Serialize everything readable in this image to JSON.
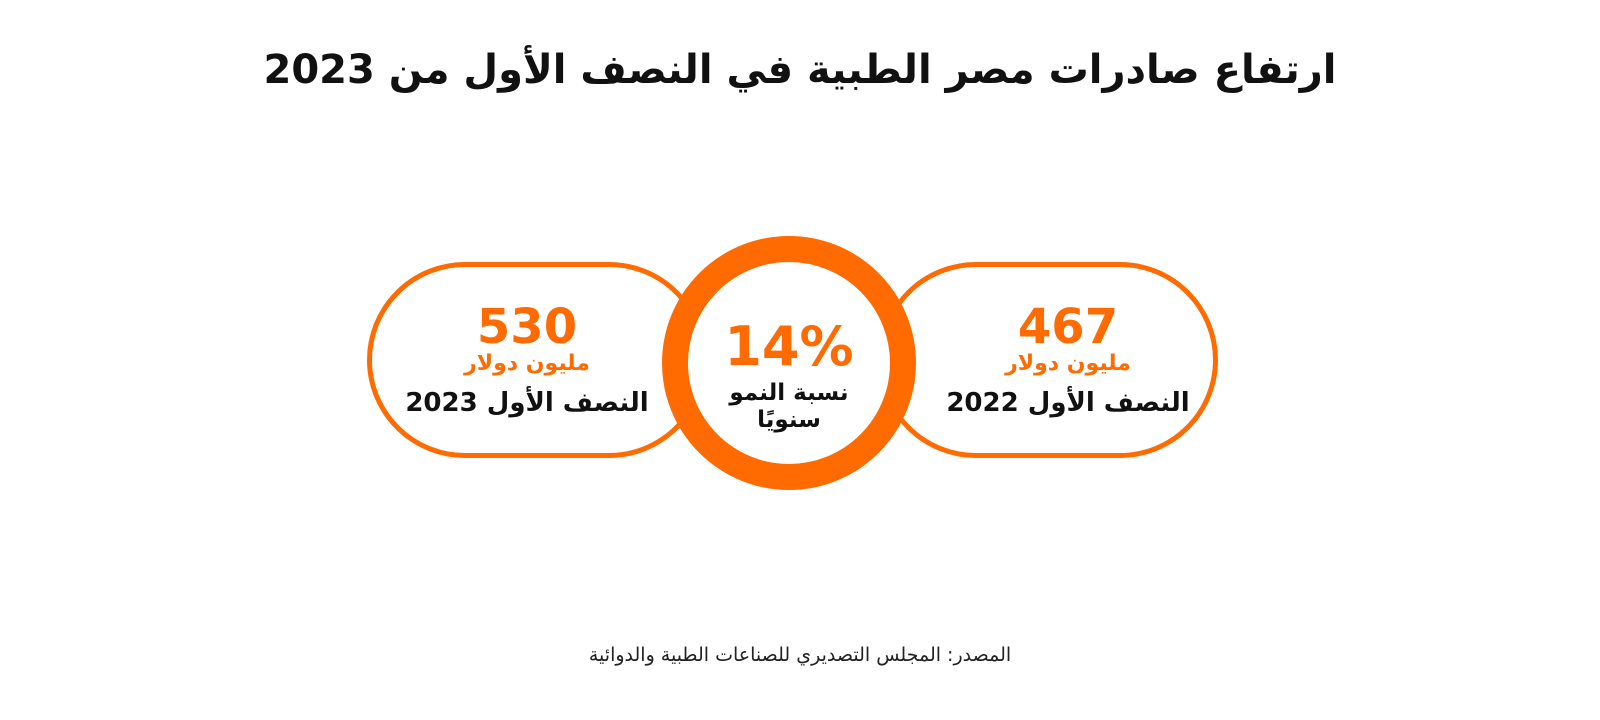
{
  "title": "ارتفاع صادرات مصر الطبية في النصف الأول من 2023",
  "left_card": {
    "value": "530",
    "unit": "مليون دولار",
    "period": "النصف الأول 2023"
  },
  "center": {
    "percent": "14%",
    "label": "نسبة النمو سنويًا"
  },
  "right_card": {
    "value": "467",
    "unit": "مليون دولار",
    "period": "النصف الأول 2022"
  },
  "source": "المصدر: المجلس التصديري للصناعات الطبية والدوائية",
  "colors": {
    "accent": "#ff6b00",
    "text": "#111111"
  }
}
